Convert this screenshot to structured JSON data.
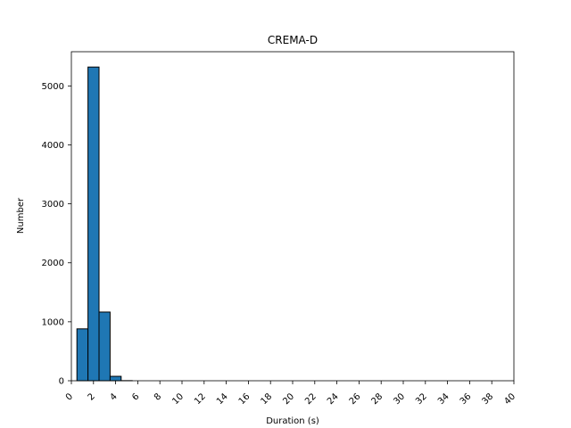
{
  "chart_data": {
    "type": "bar",
    "title": "CREMA-D",
    "xlabel": "Duration (s)",
    "ylabel": "Number",
    "xlim": [
      0,
      40
    ],
    "ylim": [
      0,
      5580
    ],
    "grid": false,
    "bar_color": "#1f77b4",
    "bar_edge_color": "#000000",
    "x_ticks": [
      "0",
      "2",
      "4",
      "6",
      "8",
      "10",
      "12",
      "14",
      "16",
      "18",
      "20",
      "22",
      "24",
      "26",
      "28",
      "30",
      "32",
      "34",
      "36",
      "38",
      "40"
    ],
    "y_ticks": [
      "0",
      "1000",
      "2000",
      "3000",
      "4000",
      "5000"
    ],
    "bins": [
      {
        "x0": 0.5,
        "x1": 1.5,
        "value": 880
      },
      {
        "x0": 1.5,
        "x1": 2.5,
        "value": 5320
      },
      {
        "x0": 2.5,
        "x1": 3.5,
        "value": 1165
      },
      {
        "x0": 3.5,
        "x1": 4.5,
        "value": 75
      },
      {
        "x0": 4.5,
        "x1": 5.5,
        "value": 2
      }
    ]
  }
}
